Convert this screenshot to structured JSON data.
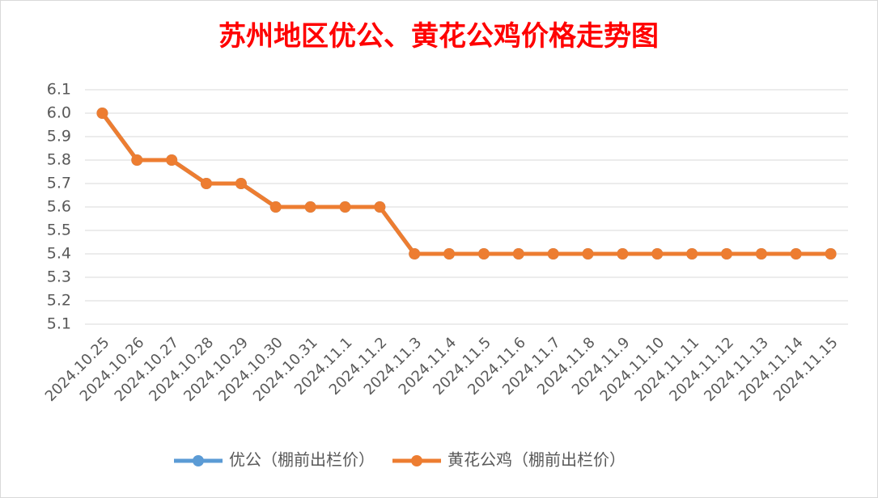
{
  "chart_data": {
    "type": "line",
    "title": "苏州地区优公、黄花公鸡价格走势图",
    "categories": [
      "2024.10.25",
      "2024.10.26",
      "2024.10.27",
      "2024.10.28",
      "2024.10.29",
      "2024.10.30",
      "2024.10.31",
      "2024.11.1",
      "2024.11.2",
      "2024.11.3",
      "2024.11.4",
      "2024.11.5",
      "2024.11.6",
      "2024.11.7",
      "2024.11.8",
      "2024.11.9",
      "2024.11.10",
      "2024.11.11",
      "2024.11.12",
      "2024.11.13",
      "2024.11.14",
      "2024.11.15"
    ],
    "series": [
      {
        "name": "优公（棚前出栏价）",
        "color": "#5b9bd5",
        "values": [
          6.0,
          5.8,
          5.8,
          5.7,
          5.7,
          5.6,
          5.6,
          5.6,
          5.6,
          5.4,
          5.4,
          5.4,
          5.4,
          5.4,
          5.4,
          5.4,
          5.4,
          5.4,
          5.4,
          5.4,
          5.4,
          5.4
        ]
      },
      {
        "name": "黄花公鸡（棚前出栏价）",
        "color": "#ed7d31",
        "values": [
          6.0,
          5.8,
          5.8,
          5.7,
          5.7,
          5.6,
          5.6,
          5.6,
          5.6,
          5.4,
          5.4,
          5.4,
          5.4,
          5.4,
          5.4,
          5.4,
          5.4,
          5.4,
          5.4,
          5.4,
          5.4,
          5.4
        ]
      }
    ],
    "ylim": [
      5.1,
      6.1
    ],
    "yticks": [
      5.1,
      5.2,
      5.3,
      5.4,
      5.5,
      5.6,
      5.7,
      5.8,
      5.9,
      {
        "value": 6,
        "label": "6.0"
      },
      6.1
    ],
    "grid": true,
    "legend": "bottom"
  }
}
